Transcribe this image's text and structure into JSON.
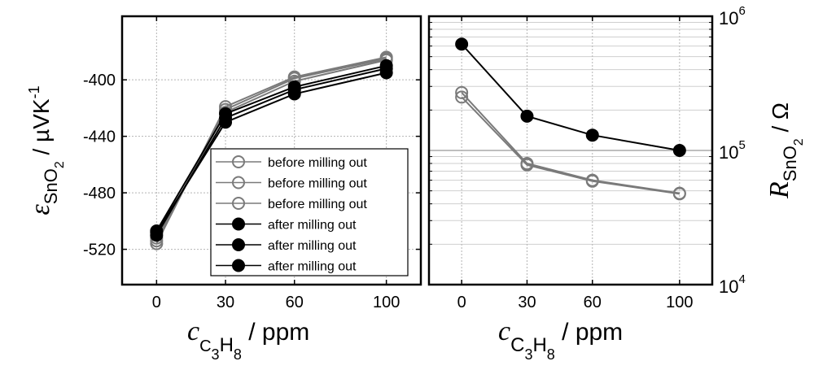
{
  "chart_data": [
    {
      "type": "line",
      "panel": "left",
      "x": [
        0,
        30,
        60,
        100
      ],
      "xlabel": {
        "main": "c",
        "sub1": "C",
        "sub2": "3",
        "sub3": "H",
        "sub4": "8",
        "unit": " / ppm"
      },
      "ylabel": {
        "main": "ε",
        "sub1": "SnO",
        "sub2": "2",
        "unit": "/  µVK",
        "sup": "-1"
      },
      "xticks": [
        "0",
        "30",
        "60",
        "100"
      ],
      "yticks": [
        "-400",
        "-440",
        "-480",
        "-520"
      ],
      "ytick_values": [
        -400,
        -440,
        -480,
        -520
      ],
      "ylim": [
        -545,
        -355
      ],
      "xlim": [
        -15,
        115
      ],
      "series": [
        {
          "name": "before milling out",
          "color": "#7a7a7a",
          "filled": false,
          "values": [
            -516,
            -419,
            -398,
            -384
          ]
        },
        {
          "name": "before milling out",
          "color": "#7a7a7a",
          "filled": false,
          "values": [
            -514,
            -421,
            -399,
            -385
          ]
        },
        {
          "name": "before milling out",
          "color": "#7a7a7a",
          "filled": false,
          "values": [
            -512,
            -423,
            -401,
            -386
          ]
        },
        {
          "name": "after milling out",
          "color": "#000000",
          "filled": true,
          "values": [
            -508,
            -430,
            -410,
            -395
          ]
        },
        {
          "name": "after milling out",
          "color": "#000000",
          "filled": true,
          "values": [
            -510,
            -427,
            -407,
            -392
          ]
        },
        {
          "name": "after milling out",
          "color": "#000000",
          "filled": true,
          "values": [
            -507,
            -424,
            -405,
            -390
          ]
        }
      ],
      "legend": [
        "before milling out",
        "before milling out",
        "before milling out",
        "after milling out",
        "after milling out",
        "after milling out"
      ],
      "legend_position": "bottom-right",
      "grid": true
    },
    {
      "type": "line",
      "panel": "right",
      "yscale": "log",
      "x": [
        0,
        30,
        60,
        100
      ],
      "xlabel": {
        "main": "c",
        "sub1": "C",
        "sub2": "3",
        "sub3": "H",
        "sub4": "8",
        "unit": " / ppm"
      },
      "ylabel": {
        "main": "R",
        "sub1": "SnO",
        "sub2": "2",
        "unit": " / Ω"
      },
      "xticks": [
        "0",
        "30",
        "60",
        "100"
      ],
      "yticks": [
        {
          "base": "10",
          "exp": "6",
          "value": 1000000
        },
        {
          "base": "10",
          "exp": "5",
          "value": 100000
        },
        {
          "base": "10",
          "exp": "4",
          "value": 10000
        }
      ],
      "ylim": [
        10000,
        1000000
      ],
      "xlim": [
        -15,
        115
      ],
      "series": [
        {
          "name": "before milling out",
          "color": "#7a7a7a",
          "filled": false,
          "values": [
            270000,
            80000,
            60000,
            48000
          ]
        },
        {
          "name": "before milling out",
          "color": "#7a7a7a",
          "filled": false,
          "values": [
            250000,
            78000,
            59000,
            47500
          ]
        },
        {
          "name": "after milling out",
          "color": "#000000",
          "filled": true,
          "values": [
            620000,
            180000,
            130000,
            100000
          ]
        }
      ],
      "grid": true
    }
  ]
}
